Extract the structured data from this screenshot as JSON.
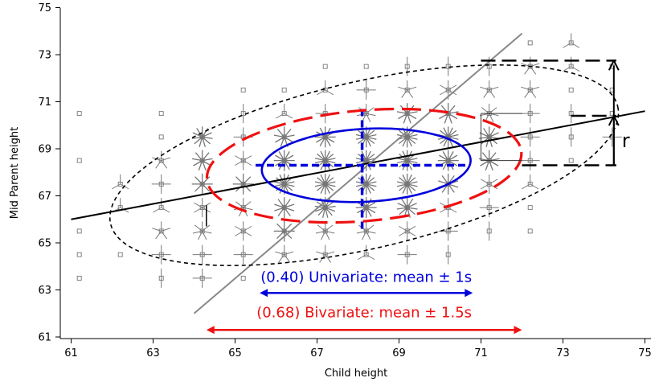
{
  "chart_data": {
    "type": "scatter",
    "xlabel": "Child height",
    "ylabel": "Mid Parent height",
    "xlim": [
      61,
      75
    ],
    "ylim": [
      61,
      75
    ],
    "xticks": [
      "61",
      "63",
      "65",
      "67",
      "69",
      "71",
      "73",
      "75"
    ],
    "yticks": [
      "61",
      "63",
      "65",
      "67",
      "69",
      "71",
      "73",
      "75"
    ],
    "grid": false,
    "colors": {
      "points": "#777777",
      "regression": "#000000",
      "major_axis": "#888888",
      "univariate": "#0000dd",
      "bivariate": "#ee1111",
      "outer_ellipse": "#000000"
    },
    "sunflower_points": [
      {
        "x": 61.2,
        "y": 70.5,
        "n": 1
      },
      {
        "x": 61.2,
        "y": 68.5,
        "n": 1
      },
      {
        "x": 61.2,
        "y": 65.5,
        "n": 1
      },
      {
        "x": 61.2,
        "y": 64.5,
        "n": 1
      },
      {
        "x": 61.2,
        "y": 63.5,
        "n": 1
      },
      {
        "x": 62.2,
        "y": 67.5,
        "n": 3
      },
      {
        "x": 62.2,
        "y": 66.5,
        "n": 3
      },
      {
        "x": 62.2,
        "y": 64.5,
        "n": 1
      },
      {
        "x": 63.2,
        "y": 70.5,
        "n": 1
      },
      {
        "x": 63.2,
        "y": 69.5,
        "n": 1
      },
      {
        "x": 63.2,
        "y": 68.5,
        "n": 5
      },
      {
        "x": 63.2,
        "y": 67.5,
        "n": 4
      },
      {
        "x": 63.2,
        "y": 66.5,
        "n": 3
      },
      {
        "x": 63.2,
        "y": 65.5,
        "n": 5
      },
      {
        "x": 63.2,
        "y": 64.5,
        "n": 4
      },
      {
        "x": 63.2,
        "y": 63.5,
        "n": 2
      },
      {
        "x": 64.2,
        "y": 69.5,
        "n": 11
      },
      {
        "x": 64.2,
        "y": 68.5,
        "n": 9
      },
      {
        "x": 64.2,
        "y": 67.5,
        "n": 8
      },
      {
        "x": 64.2,
        "y": 66.5,
        "n": 6
      },
      {
        "x": 64.2,
        "y": 65.5,
        "n": 7
      },
      {
        "x": 64.2,
        "y": 64.5,
        "n": 4
      },
      {
        "x": 64.2,
        "y": 63.5,
        "n": 4
      },
      {
        "x": 65.2,
        "y": 71.5,
        "n": 1
      },
      {
        "x": 65.2,
        "y": 70.5,
        "n": 2
      },
      {
        "x": 65.2,
        "y": 69.5,
        "n": 4
      },
      {
        "x": 65.2,
        "y": 68.5,
        "n": 6
      },
      {
        "x": 65.2,
        "y": 67.5,
        "n": 8
      },
      {
        "x": 65.2,
        "y": 66.5,
        "n": 7
      },
      {
        "x": 65.2,
        "y": 65.5,
        "n": 6
      },
      {
        "x": 65.2,
        "y": 64.5,
        "n": 4
      },
      {
        "x": 65.2,
        "y": 63.5,
        "n": 1
      },
      {
        "x": 66.2,
        "y": 71.5,
        "n": 1
      },
      {
        "x": 66.2,
        "y": 70.5,
        "n": 3
      },
      {
        "x": 66.2,
        "y": 69.5,
        "n": 9
      },
      {
        "x": 66.2,
        "y": 68.5,
        "n": 12
      },
      {
        "x": 66.2,
        "y": 67.5,
        "n": 14
      },
      {
        "x": 66.2,
        "y": 66.5,
        "n": 10
      },
      {
        "x": 66.2,
        "y": 65.5,
        "n": 8
      },
      {
        "x": 66.2,
        "y": 64.5,
        "n": 5
      },
      {
        "x": 67.2,
        "y": 72.5,
        "n": 1
      },
      {
        "x": 67.2,
        "y": 71.5,
        "n": 3
      },
      {
        "x": 67.2,
        "y": 70.5,
        "n": 4
      },
      {
        "x": 67.2,
        "y": 69.5,
        "n": 12
      },
      {
        "x": 67.2,
        "y": 68.5,
        "n": 14
      },
      {
        "x": 67.2,
        "y": 67.5,
        "n": 14
      },
      {
        "x": 67.2,
        "y": 66.5,
        "n": 13
      },
      {
        "x": 67.2,
        "y": 65.5,
        "n": 7
      },
      {
        "x": 67.2,
        "y": 64.5,
        "n": 5
      },
      {
        "x": 68.2,
        "y": 72.5,
        "n": 1
      },
      {
        "x": 68.2,
        "y": 71.5,
        "n": 4
      },
      {
        "x": 68.2,
        "y": 70.5,
        "n": 7
      },
      {
        "x": 68.2,
        "y": 69.5,
        "n": 14
      },
      {
        "x": 68.2,
        "y": 68.5,
        "n": 14
      },
      {
        "x": 68.2,
        "y": 67.5,
        "n": 14
      },
      {
        "x": 68.2,
        "y": 66.5,
        "n": 12
      },
      {
        "x": 68.2,
        "y": 65.5,
        "n": 7
      },
      {
        "x": 68.2,
        "y": 64.5,
        "n": 3
      },
      {
        "x": 69.2,
        "y": 72.5,
        "n": 2
      },
      {
        "x": 69.2,
        "y": 71.5,
        "n": 5
      },
      {
        "x": 69.2,
        "y": 70.5,
        "n": 9
      },
      {
        "x": 69.2,
        "y": 69.5,
        "n": 14
      },
      {
        "x": 69.2,
        "y": 68.5,
        "n": 14
      },
      {
        "x": 69.2,
        "y": 67.5,
        "n": 14
      },
      {
        "x": 69.2,
        "y": 66.5,
        "n": 11
      },
      {
        "x": 69.2,
        "y": 65.5,
        "n": 6
      },
      {
        "x": 69.2,
        "y": 64.5,
        "n": 4
      },
      {
        "x": 70.2,
        "y": 72.5,
        "n": 2
      },
      {
        "x": 70.2,
        "y": 71.5,
        "n": 6
      },
      {
        "x": 70.2,
        "y": 70.5,
        "n": 9
      },
      {
        "x": 70.2,
        "y": 69.5,
        "n": 14
      },
      {
        "x": 70.2,
        "y": 68.5,
        "n": 12
      },
      {
        "x": 70.2,
        "y": 67.5,
        "n": 10
      },
      {
        "x": 70.2,
        "y": 66.5,
        "n": 6
      },
      {
        "x": 70.2,
        "y": 65.5,
        "n": 4
      },
      {
        "x": 70.2,
        "y": 64.5,
        "n": 2
      },
      {
        "x": 71.2,
        "y": 72.5,
        "n": 2
      },
      {
        "x": 71.2,
        "y": 71.5,
        "n": 5
      },
      {
        "x": 71.2,
        "y": 70.5,
        "n": 7
      },
      {
        "x": 71.2,
        "y": 69.5,
        "n": 11
      },
      {
        "x": 71.2,
        "y": 68.5,
        "n": 9
      },
      {
        "x": 71.2,
        "y": 67.5,
        "n": 6
      },
      {
        "x": 71.2,
        "y": 66.5,
        "n": 4
      },
      {
        "x": 71.2,
        "y": 65.5,
        "n": 2
      },
      {
        "x": 72.2,
        "y": 73.5,
        "n": 1
      },
      {
        "x": 72.2,
        "y": 72.5,
        "n": 5
      },
      {
        "x": 72.2,
        "y": 71.5,
        "n": 5
      },
      {
        "x": 72.2,
        "y": 70.5,
        "n": 4
      },
      {
        "x": 72.2,
        "y": 69.5,
        "n": 4
      },
      {
        "x": 72.2,
        "y": 68.5,
        "n": 4
      },
      {
        "x": 72.2,
        "y": 67.5,
        "n": 3
      },
      {
        "x": 72.2,
        "y": 66.5,
        "n": 1
      },
      {
        "x": 72.2,
        "y": 65.5,
        "n": 1
      },
      {
        "x": 73.2,
        "y": 73.5,
        "n": 3
      },
      {
        "x": 73.2,
        "y": 72.5,
        "n": 3
      },
      {
        "x": 73.2,
        "y": 71.5,
        "n": 1
      },
      {
        "x": 73.2,
        "y": 70.5,
        "n": 2
      },
      {
        "x": 73.2,
        "y": 69.5,
        "n": 2
      },
      {
        "x": 73.2,
        "y": 68.5,
        "n": 1
      },
      {
        "x": 74.2,
        "y": 72.5,
        "n": 1
      },
      {
        "x": 74.2,
        "y": 71.5,
        "n": 1
      },
      {
        "x": 74.2,
        "y": 70.5,
        "n": 1
      },
      {
        "x": 74.2,
        "y": 69.5,
        "n": 4
      }
    ],
    "regression_line": {
      "x": [
        61,
        75
      ],
      "y": [
        66.0,
        70.6
      ]
    },
    "major_axis_line": {
      "x": [
        64.0,
        72.0
      ],
      "y": [
        62.0,
        73.9
      ]
    },
    "univariate_lines": {
      "horizontal": {
        "y": 68.3,
        "x": [
          65.5,
          70.7
        ]
      },
      "vertical": {
        "x": 68.1,
        "y": [
          65.6,
          70.8
        ]
      }
    },
    "ellipses": [
      {
        "name": "univariate",
        "cx": 68.2,
        "cy": 68.3,
        "rx": 2.55,
        "ry": 1.55,
        "tilt_deg": 3,
        "style": "solid"
      },
      {
        "name": "bivariate",
        "cx": 68.15,
        "cy": 68.28,
        "rx": 3.85,
        "ry": 2.35,
        "tilt_deg": 5,
        "style": "longdash"
      },
      {
        "name": "outer",
        "cx": 68.15,
        "cy": 68.3,
        "rx": 6.35,
        "ry": 3.55,
        "tilt_deg": 13,
        "style": "shortdash"
      }
    ],
    "annotations": {
      "univariate": "(0.40) Univariate: mean ± 1s",
      "bivariate": "(0.68) Bivariate: mean ± 1.5s",
      "r_label": "r"
    },
    "univariate_arrow": {
      "x": [
        65.6,
        70.8
      ],
      "y": 62.87
    },
    "bivariate_arrow": {
      "x": [
        64.3,
        72.0
      ],
      "y": 61.3
    },
    "tangent_bracket": {
      "x": [
        71.0,
        74.3
      ],
      "y_top": 72.75,
      "y_bottom": 68.3
    },
    "r_bracket": {
      "x": [
        73.2,
        74.3
      ],
      "y_top": 70.4,
      "y_bottom": 68.3
    },
    "bivariate_extent_bracket": {
      "x_left": 71.0,
      "x_right": 72.0,
      "y_top": 70.5,
      "y_bottom": 68.5
    },
    "univariate_label_y": 63.55,
    "bivariate_label_y": 62.05
  }
}
